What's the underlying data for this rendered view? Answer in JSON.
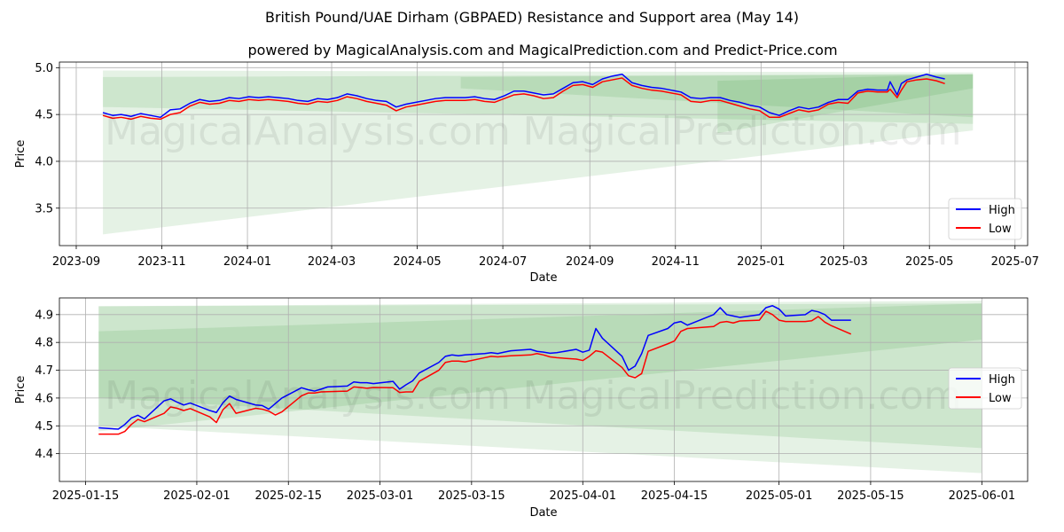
{
  "title": "British Pound/UAE Dirham (GBPAED) Resistance and Support area (May 14)",
  "subtitle": "powered by MagicalAnalysis.com and MagicalPrediction.com and Predict-Price.com",
  "watermarks": [
    "MagicalAnalysis.com",
    "MagicalPrediction.com"
  ],
  "colors": {
    "high": "#0000ff",
    "low": "#ff0000",
    "band": "#008000"
  },
  "chart_data": [
    {
      "type": "line",
      "title": "",
      "xlabel": "Date",
      "ylabel": "Price",
      "xlim": [
        "2023-08-20",
        "2025-07-10"
      ],
      "ylim": [
        3.1,
        5.06
      ],
      "x_ticks": [
        "2023-09-01",
        "2023-11-01",
        "2024-01-01",
        "2024-03-01",
        "2024-05-01",
        "2024-07-01",
        "2024-09-01",
        "2024-11-01",
        "2025-01-01",
        "2025-03-01",
        "2025-05-01",
        "2025-07-01"
      ],
      "x_tick_labels": [
        "2023-09",
        "2023-11",
        "2024-01",
        "2024-03",
        "2024-05",
        "2024-07",
        "2024-09",
        "2024-11",
        "2025-01",
        "2025-03",
        "2025-05",
        "2025-07"
      ],
      "y_ticks": [
        3.5,
        4.0,
        4.5,
        5.0
      ],
      "y_tick_labels": [
        "3.5",
        "4.0",
        "4.5",
        "5.0"
      ],
      "grid": true,
      "legend_position": "lower-right",
      "bands": [
        {
          "x": [
            "2023-09-20",
            "2025-06-01"
          ],
          "upper": [
            4.97,
            4.95
          ],
          "lower": [
            3.22,
            4.33
          ]
        },
        {
          "x": [
            "2023-09-20",
            "2025-06-01"
          ],
          "upper": [
            4.9,
            4.93
          ],
          "lower": [
            4.58,
            4.4
          ]
        },
        {
          "x": [
            "2024-06-01",
            "2025-06-01"
          ],
          "upper": [
            4.9,
            4.93
          ],
          "lower": [
            4.78,
            4.47
          ]
        },
        {
          "x": [
            "2024-12-01",
            "2025-06-01"
          ],
          "upper": [
            4.86,
            4.93
          ],
          "lower": [
            4.3,
            4.78
          ]
        }
      ],
      "series": [
        {
          "name": "High",
          "x": [
            "2023-09-20",
            "2023-09-27",
            "2023-10-03",
            "2023-10-10",
            "2023-10-17",
            "2023-10-24",
            "2023-10-31",
            "2023-11-07",
            "2023-11-14",
            "2023-11-21",
            "2023-11-28",
            "2023-12-05",
            "2023-12-12",
            "2023-12-19",
            "2023-12-26",
            "2024-01-02",
            "2024-01-09",
            "2024-01-16",
            "2024-01-23",
            "2024-01-30",
            "2024-02-06",
            "2024-02-13",
            "2024-02-20",
            "2024-02-27",
            "2024-03-05",
            "2024-03-12",
            "2024-03-19",
            "2024-03-26",
            "2024-04-02",
            "2024-04-09",
            "2024-04-16",
            "2024-04-23",
            "2024-04-30",
            "2024-05-07",
            "2024-05-14",
            "2024-05-21",
            "2024-05-28",
            "2024-06-04",
            "2024-06-11",
            "2024-06-18",
            "2024-06-25",
            "2024-07-02",
            "2024-07-09",
            "2024-07-16",
            "2024-07-23",
            "2024-07-30",
            "2024-08-06",
            "2024-08-13",
            "2024-08-20",
            "2024-08-27",
            "2024-09-03",
            "2024-09-10",
            "2024-09-17",
            "2024-09-24",
            "2024-10-01",
            "2024-10-08",
            "2024-10-15",
            "2024-10-22",
            "2024-10-29",
            "2024-11-05",
            "2024-11-12",
            "2024-11-19",
            "2024-11-26",
            "2024-12-03",
            "2024-12-10",
            "2024-12-17",
            "2024-12-24",
            "2024-12-31",
            "2025-01-07",
            "2025-01-14",
            "2025-01-21",
            "2025-01-28",
            "2025-02-04",
            "2025-02-11",
            "2025-02-18",
            "2025-02-25",
            "2025-03-04",
            "2025-03-11",
            "2025-03-18",
            "2025-03-25",
            "2025-04-01",
            "2025-04-03",
            "2025-04-08",
            "2025-04-11",
            "2025-04-15",
            "2025-04-22",
            "2025-04-29",
            "2025-05-06",
            "2025-05-12"
          ],
          "values": [
            4.52,
            4.49,
            4.5,
            4.48,
            4.51,
            4.49,
            4.47,
            4.55,
            4.56,
            4.62,
            4.66,
            4.64,
            4.65,
            4.68,
            4.67,
            4.69,
            4.68,
            4.69,
            4.68,
            4.67,
            4.65,
            4.64,
            4.67,
            4.66,
            4.68,
            4.72,
            4.7,
            4.67,
            4.65,
            4.64,
            4.58,
            4.61,
            4.63,
            4.65,
            4.67,
            4.68,
            4.68,
            4.68,
            4.69,
            4.67,
            4.66,
            4.7,
            4.75,
            4.75,
            4.73,
            4.71,
            4.72,
            4.78,
            4.84,
            4.85,
            4.82,
            4.88,
            4.91,
            4.93,
            4.84,
            4.81,
            4.79,
            4.78,
            4.76,
            4.74,
            4.68,
            4.67,
            4.68,
            4.68,
            4.65,
            4.63,
            4.6,
            4.58,
            4.52,
            4.49,
            4.54,
            4.58,
            4.56,
            4.58,
            4.63,
            4.66,
            4.66,
            4.75,
            4.77,
            4.76,
            4.76,
            4.85,
            4.71,
            4.83,
            4.87,
            4.9,
            4.93,
            4.9,
            4.88
          ]
        },
        {
          "name": "Low",
          "x": [
            "2023-09-20",
            "2023-09-27",
            "2023-10-03",
            "2023-10-10",
            "2023-10-17",
            "2023-10-24",
            "2023-10-31",
            "2023-11-07",
            "2023-11-14",
            "2023-11-21",
            "2023-11-28",
            "2023-12-05",
            "2023-12-12",
            "2023-12-19",
            "2023-12-26",
            "2024-01-02",
            "2024-01-09",
            "2024-01-16",
            "2024-01-23",
            "2024-01-30",
            "2024-02-06",
            "2024-02-13",
            "2024-02-20",
            "2024-02-27",
            "2024-03-05",
            "2024-03-12",
            "2024-03-19",
            "2024-03-26",
            "2024-04-02",
            "2024-04-09",
            "2024-04-16",
            "2024-04-23",
            "2024-04-30",
            "2024-05-07",
            "2024-05-14",
            "2024-05-21",
            "2024-05-28",
            "2024-06-04",
            "2024-06-11",
            "2024-06-18",
            "2024-06-25",
            "2024-07-02",
            "2024-07-09",
            "2024-07-16",
            "2024-07-23",
            "2024-07-30",
            "2024-08-06",
            "2024-08-13",
            "2024-08-20",
            "2024-08-27",
            "2024-09-03",
            "2024-09-10",
            "2024-09-17",
            "2024-09-24",
            "2024-10-01",
            "2024-10-08",
            "2024-10-15",
            "2024-10-22",
            "2024-10-29",
            "2024-11-05",
            "2024-11-12",
            "2024-11-19",
            "2024-11-26",
            "2024-12-03",
            "2024-12-10",
            "2024-12-17",
            "2024-12-24",
            "2024-12-31",
            "2025-01-07",
            "2025-01-14",
            "2025-01-21",
            "2025-01-28",
            "2025-02-04",
            "2025-02-11",
            "2025-02-18",
            "2025-02-25",
            "2025-03-04",
            "2025-03-11",
            "2025-03-18",
            "2025-03-25",
            "2025-04-01",
            "2025-04-03",
            "2025-04-08",
            "2025-04-11",
            "2025-04-15",
            "2025-04-22",
            "2025-04-29",
            "2025-05-06",
            "2025-05-12"
          ],
          "values": [
            4.49,
            4.46,
            4.47,
            4.45,
            4.48,
            4.46,
            4.45,
            4.5,
            4.52,
            4.59,
            4.63,
            4.61,
            4.62,
            4.65,
            4.64,
            4.66,
            4.65,
            4.66,
            4.65,
            4.64,
            4.62,
            4.61,
            4.64,
            4.63,
            4.65,
            4.69,
            4.67,
            4.64,
            4.62,
            4.6,
            4.54,
            4.58,
            4.6,
            4.62,
            4.64,
            4.65,
            4.65,
            4.65,
            4.66,
            4.64,
            4.63,
            4.67,
            4.71,
            4.72,
            4.7,
            4.67,
            4.68,
            4.75,
            4.81,
            4.82,
            4.79,
            4.85,
            4.87,
            4.89,
            4.81,
            4.78,
            4.76,
            4.75,
            4.73,
            4.71,
            4.64,
            4.63,
            4.65,
            4.65,
            4.62,
            4.59,
            4.56,
            4.54,
            4.47,
            4.47,
            4.51,
            4.55,
            4.53,
            4.55,
            4.61,
            4.63,
            4.62,
            4.73,
            4.75,
            4.74,
            4.74,
            4.77,
            4.68,
            4.76,
            4.85,
            4.87,
            4.88,
            4.86,
            4.83
          ]
        }
      ]
    },
    {
      "type": "line",
      "title": "",
      "xlabel": "Date",
      "ylabel": "Price",
      "xlim": [
        "2025-01-11",
        "2025-06-08"
      ],
      "ylim": [
        4.3,
        4.96
      ],
      "x_ticks": [
        "2025-01-15",
        "2025-02-01",
        "2025-02-15",
        "2025-03-01",
        "2025-03-15",
        "2025-04-01",
        "2025-04-15",
        "2025-05-01",
        "2025-05-15",
        "2025-06-01"
      ],
      "x_tick_labels": [
        "2025-01-15",
        "2025-02-01",
        "2025-02-15",
        "2025-03-01",
        "2025-03-15",
        "2025-04-01",
        "2025-04-15",
        "2025-05-01",
        "2025-05-15",
        "2025-06-01"
      ],
      "y_ticks": [
        4.4,
        4.5,
        4.6,
        4.7,
        4.8,
        4.9
      ],
      "y_tick_labels": [
        "4.4",
        "4.5",
        "4.6",
        "4.7",
        "4.8",
        "4.9"
      ],
      "grid": true,
      "legend_position": "center-right",
      "bands": [
        {
          "x": [
            "2025-01-17",
            "2025-06-01"
          ],
          "upper": [
            4.93,
            4.95
          ],
          "lower": [
            4.5,
            4.33
          ]
        },
        {
          "x": [
            "2025-01-17",
            "2025-06-01"
          ],
          "upper": [
            4.93,
            4.94
          ],
          "lower": [
            4.6,
            4.42
          ]
        },
        {
          "x": [
            "2025-01-17",
            "2025-06-01"
          ],
          "upper": [
            4.84,
            4.94
          ],
          "lower": [
            4.48,
            4.81
          ]
        }
      ],
      "series": [
        {
          "name": "High",
          "x": [
            "2025-01-17",
            "2025-01-20",
            "2025-01-21",
            "2025-01-22",
            "2025-01-23",
            "2025-01-24",
            "2025-01-27",
            "2025-01-28",
            "2025-01-29",
            "2025-01-30",
            "2025-01-31",
            "2025-02-03",
            "2025-02-04",
            "2025-02-05",
            "2025-02-06",
            "2025-02-07",
            "2025-02-10",
            "2025-02-11",
            "2025-02-12",
            "2025-02-13",
            "2025-02-14",
            "2025-02-17",
            "2025-02-18",
            "2025-02-19",
            "2025-02-20",
            "2025-02-21",
            "2025-02-24",
            "2025-02-25",
            "2025-02-26",
            "2025-02-27",
            "2025-02-28",
            "2025-03-03",
            "2025-03-04",
            "2025-03-05",
            "2025-03-06",
            "2025-03-07",
            "2025-03-10",
            "2025-03-11",
            "2025-03-12",
            "2025-03-13",
            "2025-03-14",
            "2025-03-17",
            "2025-03-18",
            "2025-03-19",
            "2025-03-20",
            "2025-03-21",
            "2025-03-24",
            "2025-03-25",
            "2025-03-26",
            "2025-03-27",
            "2025-03-28",
            "2025-03-31",
            "2025-04-01",
            "2025-04-02",
            "2025-04-03",
            "2025-04-04",
            "2025-04-07",
            "2025-04-08",
            "2025-04-09",
            "2025-04-10",
            "2025-04-11",
            "2025-04-14",
            "2025-04-15",
            "2025-04-16",
            "2025-04-17",
            "2025-04-21",
            "2025-04-22",
            "2025-04-23",
            "2025-04-24",
            "2025-04-25",
            "2025-04-28",
            "2025-04-29",
            "2025-04-30",
            "2025-05-01",
            "2025-05-02",
            "2025-05-05",
            "2025-05-06",
            "2025-05-07",
            "2025-05-08",
            "2025-05-09",
            "2025-05-12"
          ],
          "values": [
            4.493,
            4.488,
            4.505,
            4.528,
            4.538,
            4.525,
            4.59,
            4.597,
            4.585,
            4.575,
            4.582,
            4.555,
            4.548,
            4.583,
            4.607,
            4.595,
            4.575,
            4.573,
            4.56,
            4.58,
            4.6,
            4.637,
            4.63,
            4.625,
            4.632,
            4.64,
            4.643,
            4.658,
            4.655,
            4.655,
            4.652,
            4.66,
            4.632,
            4.648,
            4.662,
            4.69,
            4.728,
            4.75,
            4.755,
            4.752,
            4.755,
            4.76,
            4.763,
            4.76,
            4.765,
            4.77,
            4.775,
            4.768,
            4.765,
            4.761,
            4.763,
            4.775,
            4.765,
            4.772,
            4.85,
            4.815,
            4.75,
            4.7,
            4.715,
            4.76,
            4.825,
            4.85,
            4.87,
            4.875,
            4.862,
            4.9,
            4.925,
            4.9,
            4.895,
            4.89,
            4.9,
            4.925,
            4.932,
            4.92,
            4.895,
            4.9,
            4.915,
            4.91,
            4.9,
            4.88,
            4.88
          ]
        },
        {
          "name": "Low",
          "x": [
            "2025-01-17",
            "2025-01-20",
            "2025-01-21",
            "2025-01-22",
            "2025-01-23",
            "2025-01-24",
            "2025-01-27",
            "2025-01-28",
            "2025-01-29",
            "2025-01-30",
            "2025-01-31",
            "2025-02-03",
            "2025-02-04",
            "2025-02-05",
            "2025-02-06",
            "2025-02-07",
            "2025-02-10",
            "2025-02-11",
            "2025-02-12",
            "2025-02-13",
            "2025-02-14",
            "2025-02-17",
            "2025-02-18",
            "2025-02-19",
            "2025-02-20",
            "2025-02-21",
            "2025-02-24",
            "2025-02-25",
            "2025-02-26",
            "2025-02-27",
            "2025-02-28",
            "2025-03-03",
            "2025-03-04",
            "2025-03-05",
            "2025-03-06",
            "2025-03-07",
            "2025-03-10",
            "2025-03-11",
            "2025-03-12",
            "2025-03-13",
            "2025-03-14",
            "2025-03-17",
            "2025-03-18",
            "2025-03-19",
            "2025-03-20",
            "2025-03-21",
            "2025-03-24",
            "2025-03-25",
            "2025-03-26",
            "2025-03-27",
            "2025-03-28",
            "2025-03-31",
            "2025-04-01",
            "2025-04-02",
            "2025-04-03",
            "2025-04-04",
            "2025-04-07",
            "2025-04-08",
            "2025-04-09",
            "2025-04-10",
            "2025-04-11",
            "2025-04-14",
            "2025-04-15",
            "2025-04-16",
            "2025-04-17",
            "2025-04-21",
            "2025-04-22",
            "2025-04-23",
            "2025-04-24",
            "2025-04-25",
            "2025-04-28",
            "2025-04-29",
            "2025-04-30",
            "2025-05-01",
            "2025-05-02",
            "2025-05-05",
            "2025-05-06",
            "2025-05-07",
            "2025-05-08",
            "2025-05-09",
            "2025-05-12"
          ],
          "values": [
            4.47,
            4.47,
            4.48,
            4.505,
            4.523,
            4.515,
            4.545,
            4.568,
            4.563,
            4.555,
            4.562,
            4.532,
            4.512,
            4.558,
            4.58,
            4.545,
            4.563,
            4.56,
            4.553,
            4.539,
            4.55,
            4.608,
            4.618,
            4.618,
            4.622,
            4.623,
            4.625,
            4.64,
            4.638,
            4.635,
            4.638,
            4.637,
            4.62,
            4.622,
            4.622,
            4.66,
            4.7,
            4.728,
            4.733,
            4.733,
            4.73,
            4.745,
            4.75,
            4.748,
            4.75,
            4.752,
            4.755,
            4.76,
            4.755,
            4.748,
            4.745,
            4.74,
            4.735,
            4.75,
            4.77,
            4.765,
            4.71,
            4.68,
            4.673,
            4.688,
            4.768,
            4.795,
            4.805,
            4.84,
            4.85,
            4.857,
            4.872,
            4.875,
            4.87,
            4.877,
            4.88,
            4.912,
            4.9,
            4.88,
            4.875,
            4.875,
            4.878,
            4.893,
            4.873,
            4.86,
            4.83
          ]
        }
      ]
    }
  ]
}
